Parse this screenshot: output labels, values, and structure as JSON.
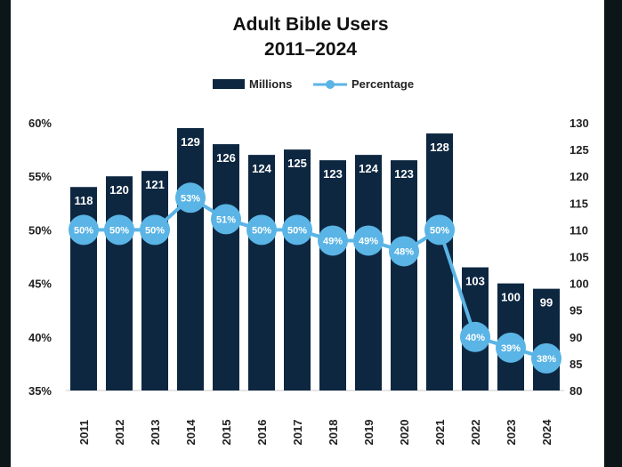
{
  "colors": {
    "bar": "#0e2741",
    "line": "#5ab4e5",
    "background": "#ffffff",
    "outer_background": "#0c1618"
  },
  "chart_data": {
    "type": "bar",
    "title": "Adult Bible Users",
    "subtitle": "2011–2024",
    "legend": {
      "placement": "top-center",
      "entries": [
        "Millions",
        "Percentage"
      ]
    },
    "grid": false,
    "categories": [
      "2011",
      "2012",
      "2013",
      "2014",
      "2015",
      "2016",
      "2017",
      "2018",
      "2019",
      "2020",
      "2021",
      "2022",
      "2023",
      "2024"
    ],
    "series": [
      {
        "name": "Millions",
        "type": "bar",
        "axis": "right",
        "values": [
          118,
          120,
          121,
          129,
          126,
          124,
          125,
          123,
          124,
          123,
          128,
          103,
          100,
          99
        ],
        "labels": [
          "118",
          "120",
          "121",
          "129",
          "126",
          "124",
          "125",
          "123",
          "124",
          "123",
          "128",
          "103",
          "100",
          "99"
        ]
      },
      {
        "name": "Percentage",
        "type": "line",
        "axis": "left",
        "values": [
          50,
          50,
          50,
          53,
          51,
          50,
          50,
          49,
          49,
          48,
          50,
          40,
          39,
          38
        ],
        "labels": [
          "50%",
          "50%",
          "50%",
          "53%",
          "51%",
          "50%",
          "50%",
          "49%",
          "49%",
          "48%",
          "50%",
          "40%",
          "39%",
          "38%"
        ]
      }
    ],
    "y_left": {
      "range": [
        35,
        60
      ],
      "ticks": [
        "35%",
        "40%",
        "45%",
        "50%",
        "55%",
        "60%"
      ]
    },
    "y_right": {
      "range": [
        80,
        130
      ],
      "ticks": [
        "80",
        "85",
        "90",
        "95",
        "100",
        "105",
        "110",
        "115",
        "120",
        "125",
        "130"
      ]
    }
  }
}
